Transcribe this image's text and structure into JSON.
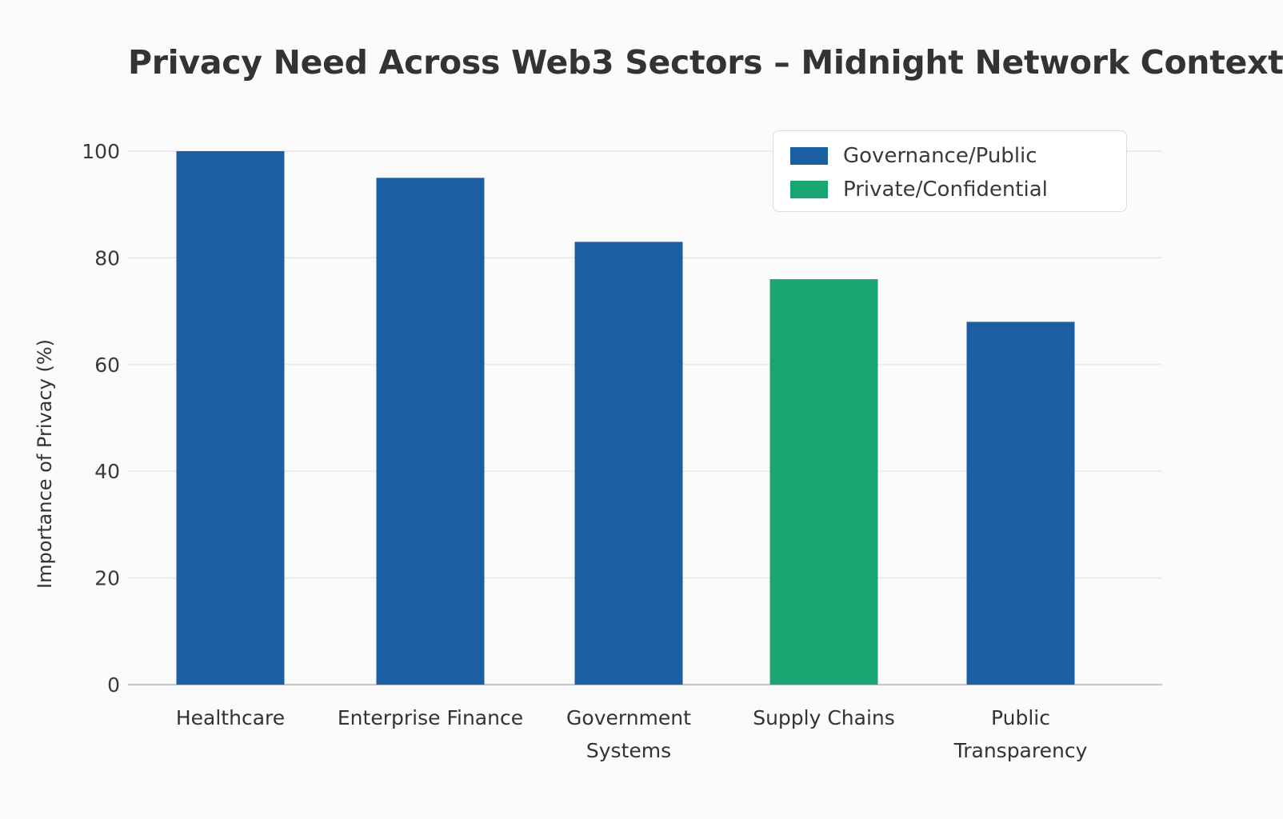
{
  "chart_data": {
    "type": "bar",
    "title": "Privacy Need Across Web3 Sectors – Midnight Network Context",
    "ylabel": "Importance of Privacy (%)",
    "xlabel": "",
    "ylim": [
      0,
      100
    ],
    "yticks": [
      0,
      20,
      40,
      60,
      80,
      100
    ],
    "grid": true,
    "legend_position": "top-right",
    "categories": [
      [
        "Healthcare"
      ],
      [
        "Enterprise Finance"
      ],
      [
        "Government",
        "Systems"
      ],
      [
        "Supply Chains"
      ],
      [
        "Public",
        "Transparency"
      ]
    ],
    "values": [
      100,
      95,
      83,
      76,
      68
    ],
    "bar_groups": [
      "Governance/Public",
      "Governance/Public",
      "Governance/Public",
      "Private/Confidential",
      "Governance/Public"
    ],
    "legend": [
      {
        "label": "Governance/Public",
        "color": "#1b5fa3"
      },
      {
        "label": "Private/Confidential",
        "color": "#1aa673"
      }
    ]
  }
}
